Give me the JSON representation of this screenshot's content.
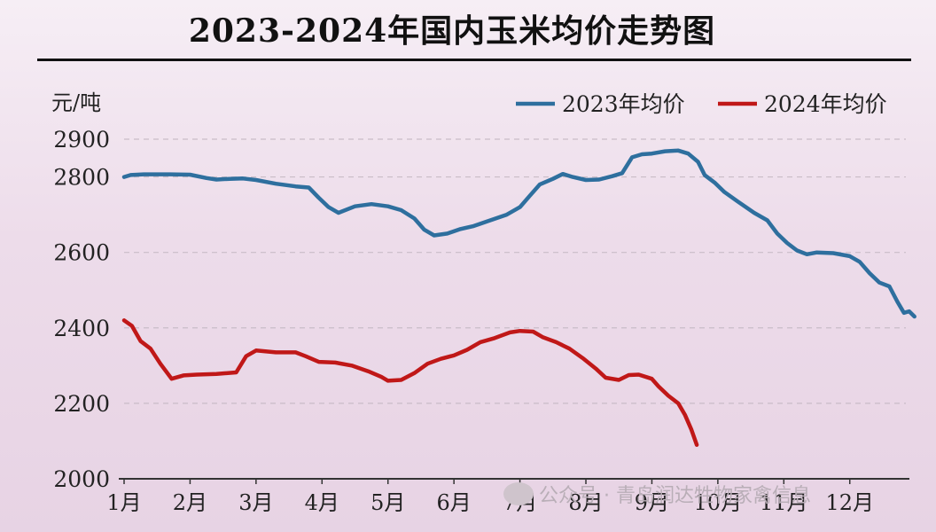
{
  "title": "2023-2024年国内玉米均价走势图",
  "watermark": "公众号 · 青岛润达牲物家禽信息",
  "colors": {
    "series_2023": "#2e6f9e",
    "series_2024": "#c01818",
    "grid": "#c9bcc7"
  },
  "chart_data": {
    "type": "line",
    "title": "2023-2024年国内玉米均价走势图",
    "ylabel": "元/吨",
    "xlabel": "",
    "ylim": [
      2000,
      2900
    ],
    "yticks": [
      2000,
      2200,
      2400,
      2600,
      2800,
      2900
    ],
    "xticks": [
      "1月",
      "2月",
      "3月",
      "4月",
      "5月",
      "6月",
      "7月",
      "8月",
      "9月",
      "10月",
      "11月",
      "12月"
    ],
    "xlim": [
      1,
      12.85
    ],
    "grid": true,
    "legend_position": "top-right",
    "series": [
      {
        "name": "2023年均价",
        "color": "#2e6f9e",
        "points": [
          [
            1.0,
            2800
          ],
          [
            1.1,
            2805
          ],
          [
            1.3,
            2807
          ],
          [
            1.7,
            2807
          ],
          [
            2.0,
            2806
          ],
          [
            2.25,
            2797
          ],
          [
            2.4,
            2793
          ],
          [
            2.6,
            2795
          ],
          [
            2.8,
            2796
          ],
          [
            3.0,
            2792
          ],
          [
            3.3,
            2782
          ],
          [
            3.6,
            2775
          ],
          [
            3.8,
            2772
          ],
          [
            3.95,
            2745
          ],
          [
            4.1,
            2720
          ],
          [
            4.25,
            2705
          ],
          [
            4.5,
            2722
          ],
          [
            4.75,
            2728
          ],
          [
            5.0,
            2722
          ],
          [
            5.2,
            2712
          ],
          [
            5.4,
            2690
          ],
          [
            5.55,
            2660
          ],
          [
            5.7,
            2645
          ],
          [
            5.9,
            2650
          ],
          [
            6.1,
            2662
          ],
          [
            6.3,
            2670
          ],
          [
            6.5,
            2682
          ],
          [
            6.8,
            2700
          ],
          [
            7.0,
            2720
          ],
          [
            7.15,
            2750
          ],
          [
            7.3,
            2780
          ],
          [
            7.5,
            2795
          ],
          [
            7.65,
            2808
          ],
          [
            7.8,
            2800
          ],
          [
            8.0,
            2792
          ],
          [
            8.2,
            2793
          ],
          [
            8.4,
            2802
          ],
          [
            8.55,
            2810
          ],
          [
            8.7,
            2852
          ],
          [
            8.85,
            2860
          ],
          [
            9.0,
            2862
          ],
          [
            9.2,
            2868
          ],
          [
            9.4,
            2870
          ],
          [
            9.55,
            2862
          ],
          [
            9.7,
            2840
          ],
          [
            9.8,
            2805
          ],
          [
            9.95,
            2785
          ],
          [
            10.1,
            2760
          ],
          [
            10.3,
            2735
          ],
          [
            10.55,
            2705
          ],
          [
            10.75,
            2685
          ],
          [
            10.9,
            2650
          ],
          [
            11.05,
            2625
          ],
          [
            11.2,
            2605
          ],
          [
            11.35,
            2595
          ],
          [
            11.5,
            2600
          ],
          [
            11.75,
            2598
          ],
          [
            12.0,
            2590
          ],
          [
            12.15,
            2575
          ],
          [
            12.3,
            2545
          ],
          [
            12.45,
            2520
          ],
          [
            12.6,
            2510
          ],
          [
            12.72,
            2470
          ],
          [
            12.82,
            2440
          ],
          [
            12.9,
            2444
          ],
          [
            12.98,
            2430
          ]
        ]
      },
      {
        "name": "2024年均价",
        "color": "#c01818",
        "points": [
          [
            1.0,
            2420
          ],
          [
            1.12,
            2405
          ],
          [
            1.25,
            2365
          ],
          [
            1.4,
            2345
          ],
          [
            1.55,
            2305
          ],
          [
            1.72,
            2265
          ],
          [
            1.9,
            2274
          ],
          [
            2.1,
            2276
          ],
          [
            2.4,
            2278
          ],
          [
            2.7,
            2282
          ],
          [
            2.85,
            2325
          ],
          [
            3.0,
            2340
          ],
          [
            3.3,
            2335
          ],
          [
            3.6,
            2335
          ],
          [
            3.75,
            2325
          ],
          [
            3.95,
            2310
          ],
          [
            4.2,
            2308
          ],
          [
            4.45,
            2300
          ],
          [
            4.7,
            2285
          ],
          [
            4.9,
            2270
          ],
          [
            5.0,
            2260
          ],
          [
            5.2,
            2262
          ],
          [
            5.4,
            2280
          ],
          [
            5.6,
            2305
          ],
          [
            5.8,
            2318
          ],
          [
            6.0,
            2327
          ],
          [
            6.2,
            2342
          ],
          [
            6.4,
            2362
          ],
          [
            6.6,
            2372
          ],
          [
            6.85,
            2388
          ],
          [
            7.0,
            2392
          ],
          [
            7.2,
            2390
          ],
          [
            7.35,
            2375
          ],
          [
            7.55,
            2362
          ],
          [
            7.75,
            2345
          ],
          [
            7.95,
            2320
          ],
          [
            8.15,
            2292
          ],
          [
            8.3,
            2268
          ],
          [
            8.5,
            2262
          ],
          [
            8.65,
            2275
          ],
          [
            8.8,
            2276
          ],
          [
            9.0,
            2265
          ],
          [
            9.1,
            2245
          ],
          [
            9.25,
            2220
          ],
          [
            9.4,
            2200
          ],
          [
            9.5,
            2170
          ],
          [
            9.6,
            2130
          ],
          [
            9.68,
            2090
          ]
        ]
      }
    ]
  }
}
